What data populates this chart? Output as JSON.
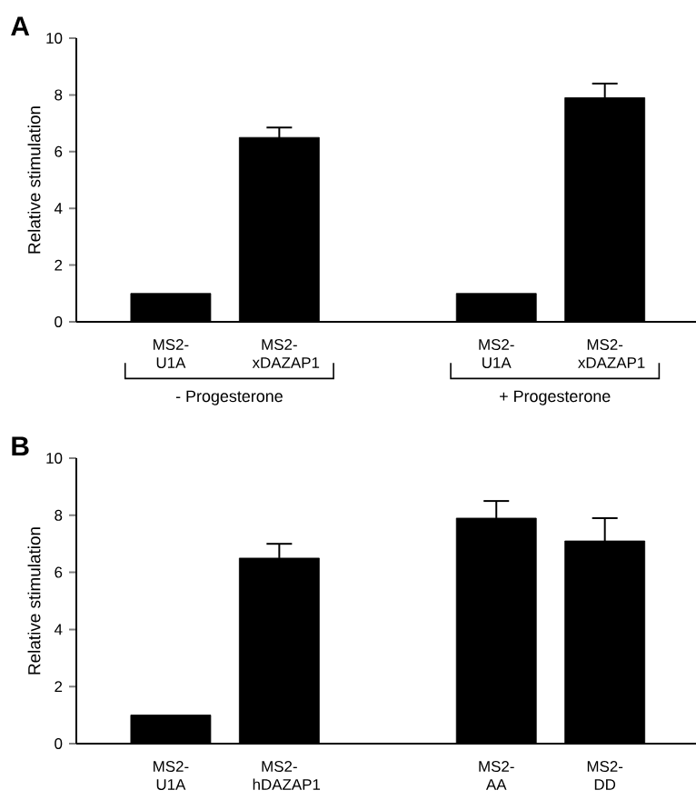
{
  "chart_data": [
    {
      "type": "bar",
      "title": "A",
      "ylabel": "Relative stimulation",
      "categories": [
        "MS2-U1A",
        "MS2-xDAZAP1",
        null,
        "MS2-U1A",
        "MS2-xDAZAP1"
      ],
      "values": [
        1,
        6.5,
        null,
        1,
        7.9
      ],
      "errors": [
        null,
        0.35,
        null,
        null,
        0.5
      ],
      "color": "#000000",
      "ylim": [
        0,
        10
      ],
      "yticks": [
        0,
        2,
        4,
        6,
        8,
        10
      ],
      "annotations": [
        "- Progesterone",
        "+ Progesterone"
      ]
    },
    {
      "type": "bar",
      "title": "B",
      "ylabel": "Relative stimulation",
      "categories": [
        "MS2-U1A",
        "MS2-hDAZAP1",
        null,
        "MS2-AA",
        "MS2-DD"
      ],
      "values": [
        1,
        6.5,
        null,
        7.9,
        7.1
      ],
      "errors": [
        null,
        0.5,
        null,
        0.6,
        0.8
      ],
      "color": "#000000",
      "ylim": [
        0,
        10
      ],
      "yticks": [
        0,
        2,
        4,
        6,
        8,
        10
      ]
    }
  ]
}
